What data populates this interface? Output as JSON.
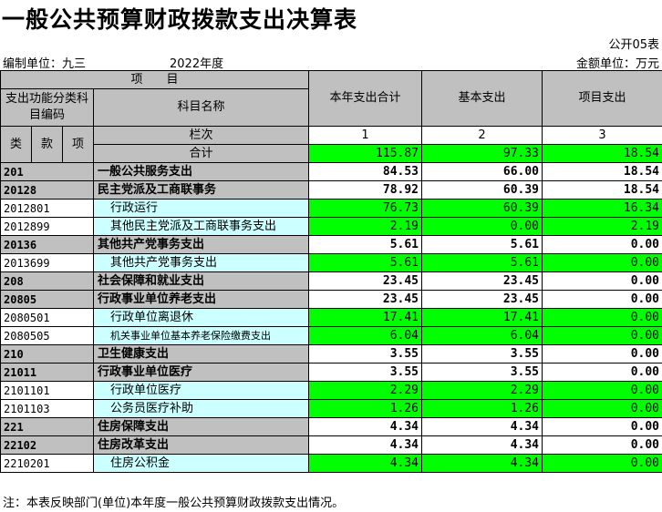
{
  "title": "一般公共预算财政拨款支出决算表",
  "form_no": "公开05表",
  "org_label": "编制单位：九三",
  "year": "2022年度",
  "unit_label": "金额单位：万元",
  "header": {
    "item": "项　　目",
    "code_col": "支出功能分类科目编码",
    "name_col": "科目名称",
    "total_col": "本年支出合计",
    "basic_col": "基本支出",
    "project_col": "项目支出",
    "lei": "类",
    "kuan": "款",
    "xiang": "项",
    "lanci": "栏次",
    "col1": "1",
    "col2": "2",
    "col3": "3"
  },
  "total_row": {
    "label": "合计",
    "total": "115.87",
    "basic": "97.33",
    "project": "18.54"
  },
  "rows": [
    {
      "code": "201",
      "name": "一般公共服务支出",
      "total": "84.53",
      "basic": "66.00",
      "project": "18.54"
    },
    {
      "code": "20128",
      "name": "民主党派及工商联事务",
      "total": "78.92",
      "basic": "60.39",
      "project": "18.54"
    },
    {
      "code": "2012801",
      "name": "行政运行",
      "total": "76.73",
      "basic": "60.39",
      "project": "16.34"
    },
    {
      "code": "2012899",
      "name": "其他民主党派及工商联事务支出",
      "total": "2.19",
      "basic": "0.00",
      "project": "2.19"
    },
    {
      "code": "20136",
      "name": "其他共产党事务支出",
      "total": "5.61",
      "basic": "5.61",
      "project": "0.00"
    },
    {
      "code": "2013699",
      "name": "其他共产党事务支出",
      "total": "5.61",
      "basic": "5.61",
      "project": "0.00"
    },
    {
      "code": "208",
      "name": "社会保障和就业支出",
      "total": "23.45",
      "basic": "23.45",
      "project": "0.00"
    },
    {
      "code": "20805",
      "name": "行政事业单位养老支出",
      "total": "23.45",
      "basic": "23.45",
      "project": "0.00"
    },
    {
      "code": "2080501",
      "name": "行政单位离退休",
      "total": "17.41",
      "basic": "17.41",
      "project": "0.00"
    },
    {
      "code": "2080505",
      "name": "机关事业单位基本养老保险缴费支出",
      "total": "6.04",
      "basic": "6.04",
      "project": "0.00"
    },
    {
      "code": "210",
      "name": "卫生健康支出",
      "total": "3.55",
      "basic": "3.55",
      "project": "0.00"
    },
    {
      "code": "21011",
      "name": "行政事业单位医疗",
      "total": "3.55",
      "basic": "3.55",
      "project": "0.00"
    },
    {
      "code": "2101101",
      "name": "行政单位医疗",
      "total": "2.29",
      "basic": "2.29",
      "project": "0.00"
    },
    {
      "code": "2101103",
      "name": "公务员医疗补助",
      "total": "1.26",
      "basic": "1.26",
      "project": "0.00"
    },
    {
      "code": "221",
      "name": "住房保障支出",
      "total": "4.34",
      "basic": "4.34",
      "project": "0.00"
    },
    {
      "code": "22102",
      "name": "住房改革支出",
      "total": "4.34",
      "basic": "4.34",
      "project": "0.00"
    },
    {
      "code": "2210201",
      "name": "住房公积金",
      "total": "4.34",
      "basic": "4.34",
      "project": "0.00"
    }
  ],
  "footer": "注：本表反映部门(单位)本年度一般公共预算财政拨款支出情况。",
  "colors": {
    "header_gray": "#c0c0c0",
    "input_green": "#00ff00",
    "detail_cyan": "#ccffff"
  }
}
